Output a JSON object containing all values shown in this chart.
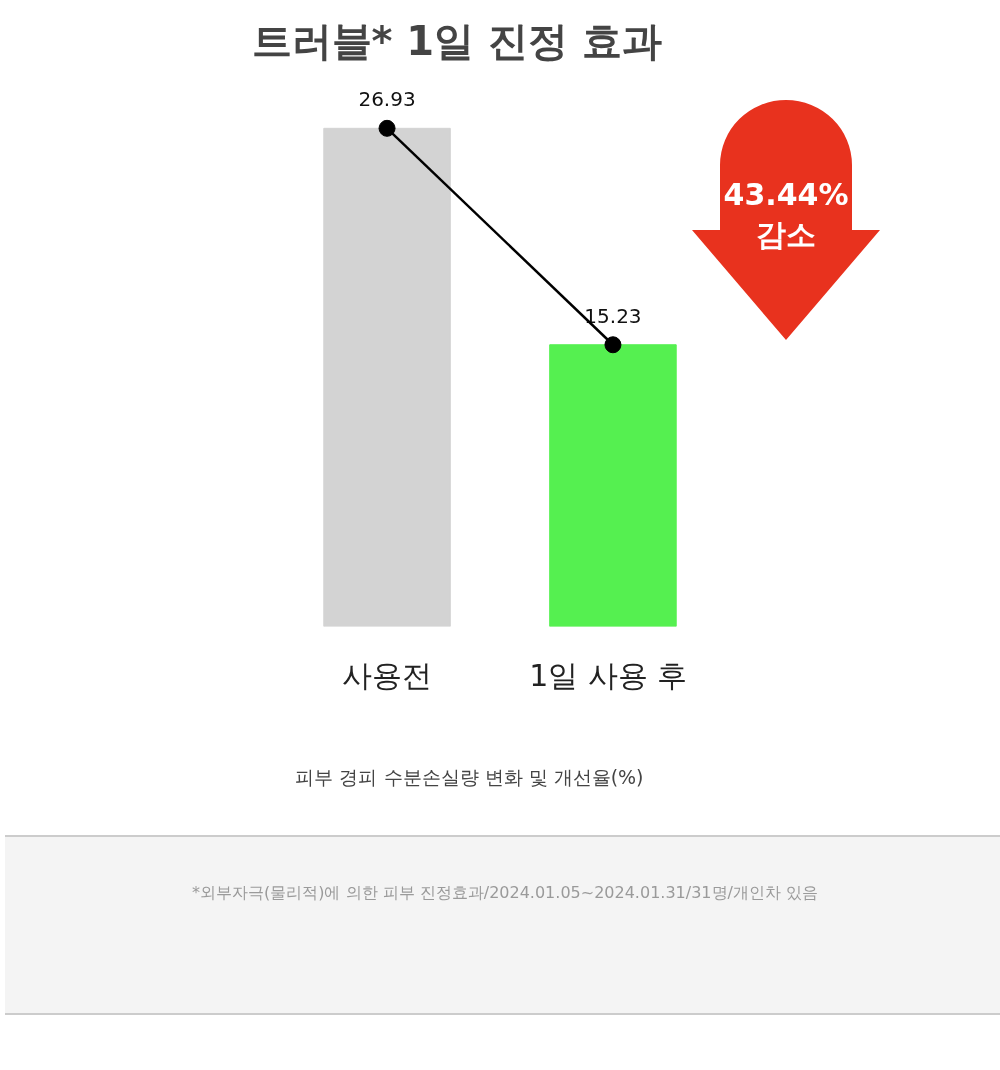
{
  "chart_data": {
    "type": "bar",
    "title": "트러블* 1일 진정 효과",
    "xlabel": "피부 경피 수분손실량 변화 및 개선율(%)",
    "categories": [
      "사용전",
      "1일 사용 후"
    ],
    "series": [
      {
        "values": [
          26.93,
          15.23
        ],
        "colors": [
          "#d3d3d3",
          "#55f050"
        ],
        "value_labels": [
          "26.93",
          "15.23"
        ]
      },
      {
        "type": "line",
        "color": "#000000",
        "values": [
          26.93,
          15.23
        ],
        "marker": "circle"
      }
    ],
    "grid": false,
    "annotations": [
      "43.44%\n감소",
      "*외부자극(물리적)에 의한 피부 진정효과/2024.01.05~2024.01.31/31명/개인차 있음"
    ]
  }
}
